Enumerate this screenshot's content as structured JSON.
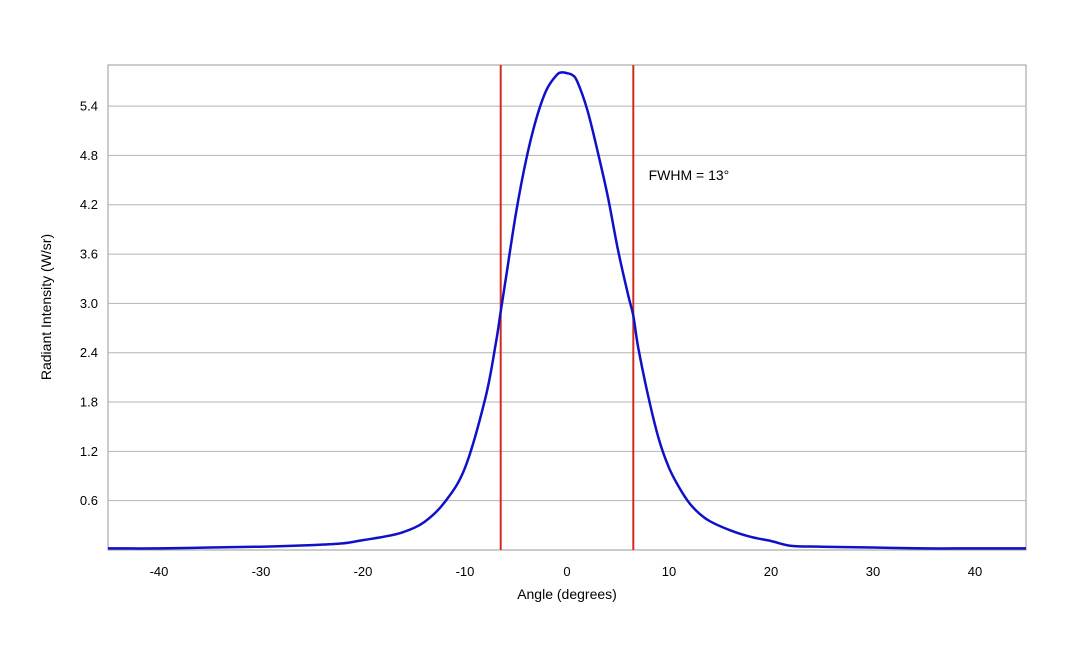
{
  "chart_data": {
    "type": "line",
    "title": "",
    "xlabel": "Angle (degrees)",
    "ylabel": "Radiant Intensity (W/sr)",
    "xlim": [
      -45,
      45
    ],
    "ylim": [
      0,
      5.9
    ],
    "xticks": [
      -40,
      -30,
      -20,
      -10,
      0,
      10,
      20,
      30,
      40
    ],
    "yticks": [
      0.6,
      1.2,
      1.8,
      2.4,
      3.0,
      3.6,
      4.2,
      4.8,
      5.4
    ],
    "ytick_labels": [
      "0.6",
      "1.2",
      "1.8",
      "2.4",
      "3.0",
      "3.6",
      "4.2",
      "4.8",
      "5.4"
    ],
    "grid": "horizontal",
    "series": [
      {
        "color": "#1010c8",
        "x": [
          -45,
          -40,
          -35,
          -30,
          -25,
          -22,
          -20,
          -18,
          -16,
          -14,
          -12,
          -10,
          -8,
          -7,
          -6.5,
          -6,
          -5,
          -4,
          -3,
          -2,
          -1,
          -0.5,
          0,
          0.5,
          1,
          2,
          3,
          4,
          5,
          6,
          6.5,
          7,
          8,
          9,
          10,
          11,
          12,
          13,
          14,
          16,
          18,
          20,
          22,
          25,
          30,
          35,
          40,
          45
        ],
        "y": [
          0.02,
          0.02,
          0.03,
          0.04,
          0.06,
          0.08,
          0.12,
          0.16,
          0.22,
          0.34,
          0.58,
          1.0,
          1.85,
          2.5,
          2.9,
          3.3,
          4.1,
          4.75,
          5.25,
          5.6,
          5.78,
          5.81,
          5.8,
          5.78,
          5.7,
          5.35,
          4.85,
          4.3,
          3.65,
          3.1,
          2.85,
          2.45,
          1.85,
          1.35,
          1.0,
          0.76,
          0.57,
          0.44,
          0.35,
          0.24,
          0.16,
          0.11,
          0.05,
          0.04,
          0.03,
          0.02,
          0.02,
          0.02
        ]
      }
    ],
    "vlines": [
      -6.5,
      6.5
    ],
    "vline_color": "#d42a1e",
    "annotations": [
      {
        "text": "FWHM = 13°",
        "x": 8,
        "y": 4.5
      }
    ]
  }
}
